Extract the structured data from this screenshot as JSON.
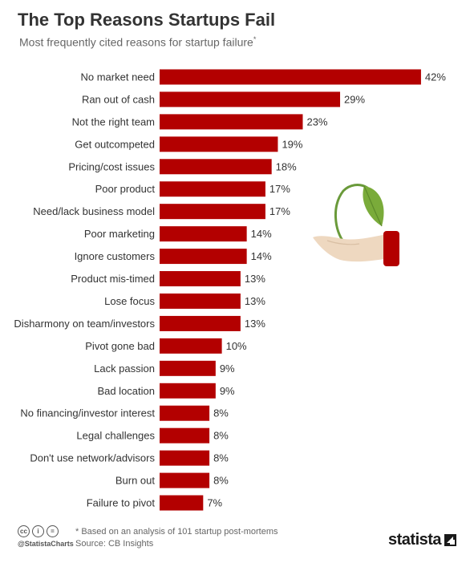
{
  "title": "The Top Reasons Startups Fail",
  "subtitle": "Most frequently cited reasons for startup failure",
  "subtitle_marker": "*",
  "bar_color": "#b30000",
  "chart_data": {
    "type": "bar",
    "orientation": "horizontal",
    "categories": [
      "No market need",
      "Ran out of cash",
      "Not the right team",
      "Get outcompeted",
      "Pricing/cost issues",
      "Poor product",
      "Need/lack business model",
      "Poor marketing",
      "Ignore customers",
      "Product mis-timed",
      "Lose focus",
      "Disharmony on team/investors",
      "Pivot gone bad",
      "Lack passion",
      "Bad location",
      "No financing/investor interest",
      "Legal challenges",
      "Don't use network/advisors",
      "Burn out",
      "Failure to pivot"
    ],
    "values": [
      42,
      29,
      23,
      19,
      18,
      17,
      17,
      14,
      14,
      13,
      13,
      13,
      10,
      9,
      9,
      8,
      8,
      8,
      8,
      7
    ],
    "value_suffix": "%"
  },
  "footer": {
    "handle": "@StatistaCharts",
    "footnote": "* Based on an analysis of 101 startup post-mortems",
    "source": "Source: CB Insights",
    "cc_icons": [
      "cc",
      "i",
      "="
    ],
    "brand": "statista"
  },
  "illustration_icon": "plant-in-hand-icon"
}
